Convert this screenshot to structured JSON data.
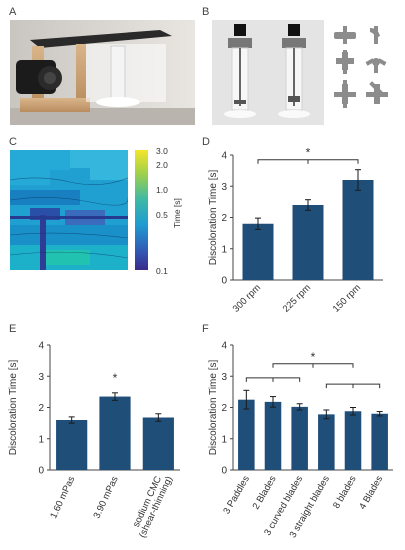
{
  "panels": {
    "a": {
      "letter": "A"
    },
    "b": {
      "letter": "B"
    },
    "c": {
      "letter": "C"
    },
    "d": {
      "letter": "D"
    },
    "e": {
      "letter": "E"
    },
    "f": {
      "letter": "F"
    }
  },
  "heatmap": {
    "colorbar_ticks": [
      "3.0",
      "2.0",
      "1.0",
      "0.5",
      "0.1"
    ],
    "colorbar_label": "Time [s]"
  },
  "chart_data": [
    {
      "panel": "D",
      "type": "bar",
      "categories": [
        "300 rpm",
        "225 rpm",
        "150 rpm"
      ],
      "values": [
        1.8,
        2.4,
        3.2
      ],
      "errors": [
        0.18,
        0.17,
        0.33
      ],
      "ylabel": "Discoloration Time [s]",
      "ylim": [
        0,
        4
      ],
      "yticks": [
        "0",
        "1",
        "2",
        "3",
        "4"
      ],
      "significance": [
        {
          "from": 0,
          "to": 2,
          "label": "*"
        }
      ],
      "bar_color": "#1f4e79"
    },
    {
      "panel": "E",
      "type": "bar",
      "categories": [
        "1.60 mPas",
        "3.90 mPas",
        "sodium CMC (shear-thinning)"
      ],
      "category_lines": [
        [
          "1.60 mPas"
        ],
        [
          "3.90 mPas"
        ],
        [
          "sodium CMC",
          "(shear-thinning)"
        ]
      ],
      "values": [
        1.6,
        2.35,
        1.68
      ],
      "errors": [
        0.1,
        0.12,
        0.12
      ],
      "ylabel": "Discoloration Time [s]",
      "ylim": [
        0,
        4
      ],
      "yticks": [
        "0",
        "1",
        "2",
        "3",
        "4"
      ],
      "significance": [
        {
          "bar": 1,
          "label": "*"
        }
      ],
      "bar_color": "#1f4e79"
    },
    {
      "panel": "F",
      "type": "bar",
      "categories": [
        "3 Paddles",
        "2 Blades",
        "3 curved blades",
        "3 straight blades",
        "8 blades",
        "4 Blades"
      ],
      "values": [
        2.25,
        2.18,
        2.02,
        1.78,
        1.88,
        1.8
      ],
      "errors": [
        0.3,
        0.17,
        0.1,
        0.14,
        0.12,
        0.07
      ],
      "ylabel": "Discoloration Time [s]",
      "ylim": [
        0,
        4
      ],
      "yticks": [
        "0",
        "1",
        "2",
        "3",
        "4"
      ],
      "significance": [
        {
          "from": 0,
          "to": 2,
          "label": ""
        },
        {
          "from": 1,
          "to": 4,
          "label": "*"
        },
        {
          "from": 3,
          "to": 5,
          "label": ""
        }
      ],
      "bar_color": "#1f4e79"
    }
  ]
}
